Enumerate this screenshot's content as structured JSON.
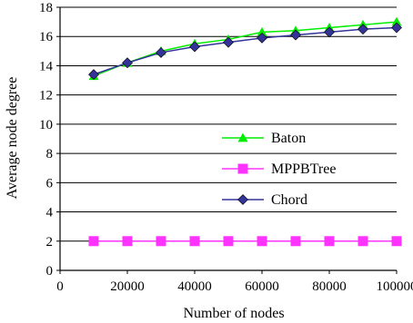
{
  "chart_data": {
    "type": "line",
    "title": "",
    "xlabel": "Number of nodes",
    "ylabel": "Average node degree",
    "xlim": [
      0,
      100000
    ],
    "ylim": [
      0,
      18
    ],
    "xticks": [
      0,
      20000,
      40000,
      60000,
      80000,
      100000
    ],
    "yticks": [
      0,
      2,
      4,
      6,
      8,
      10,
      12,
      14,
      16,
      18
    ],
    "xtick_labels": [
      "0",
      "20000",
      "40000",
      "60000",
      "80000",
      "100000"
    ],
    "ytick_labels": [
      "0",
      "2",
      "4",
      "6",
      "8",
      "10",
      "12",
      "14",
      "16",
      "18"
    ],
    "grid": "horizontal",
    "legend_position": "center-right",
    "x": [
      10000,
      20000,
      30000,
      40000,
      50000,
      60000,
      70000,
      80000,
      90000,
      100000
    ],
    "series": [
      {
        "name": "Baton",
        "color": "#00ee00",
        "marker": "triangle",
        "values": [
          13.3,
          14.2,
          15.0,
          15.5,
          15.8,
          16.3,
          16.4,
          16.6,
          16.8,
          17.0
        ]
      },
      {
        "name": "MPPBTree",
        "color": "#ff33ff",
        "marker": "square",
        "values": [
          2,
          2,
          2,
          2,
          2,
          2,
          2,
          2,
          2,
          2
        ]
      },
      {
        "name": "Chord",
        "color": "#333399",
        "marker": "diamond",
        "values": [
          13.4,
          14.2,
          14.9,
          15.3,
          15.6,
          15.9,
          16.1,
          16.3,
          16.5,
          16.6
        ]
      }
    ]
  }
}
